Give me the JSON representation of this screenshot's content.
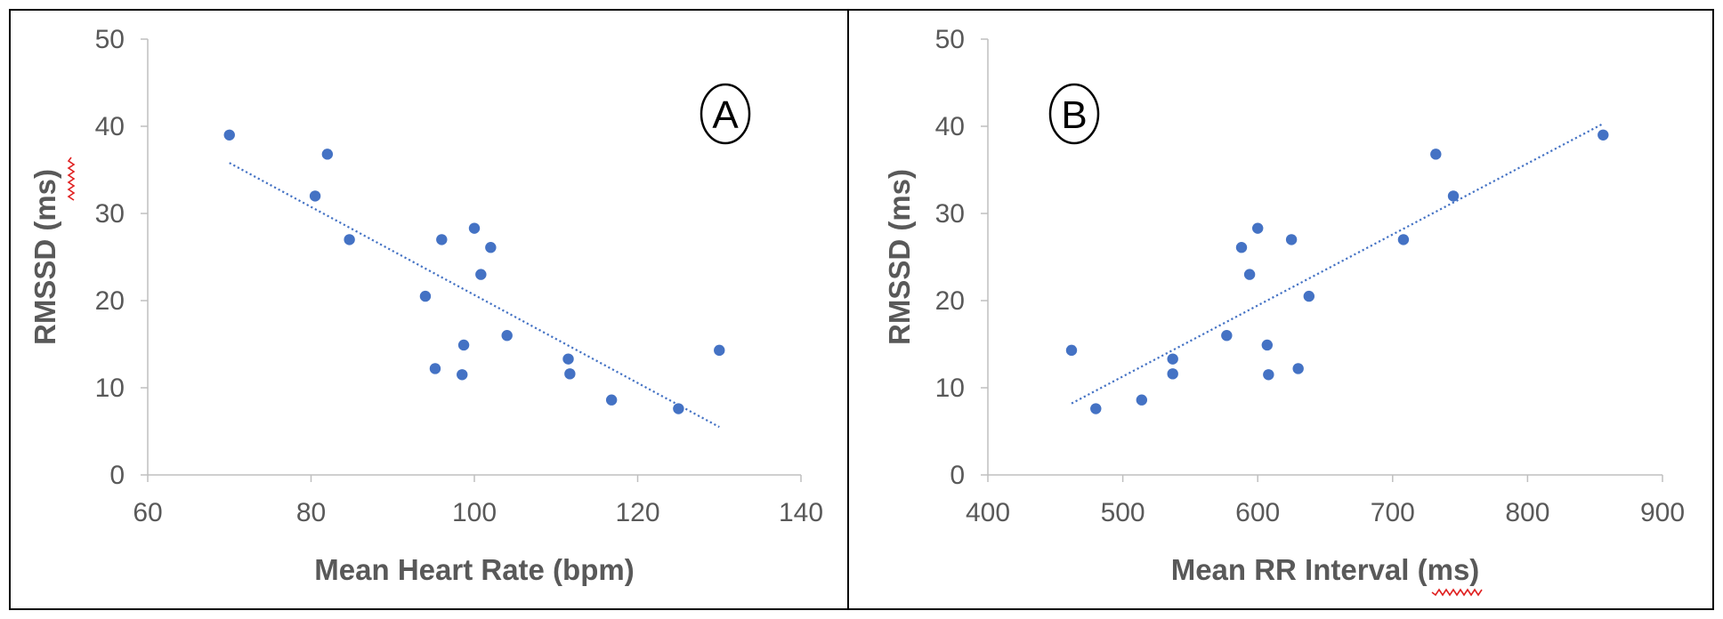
{
  "chart_data": [
    {
      "id": "A",
      "type": "scatter",
      "panel_label": "A",
      "xlabel": "Mean Heart Rate (bpm)",
      "ylabel": "RMSSD (ms)",
      "xlim": [
        60,
        140
      ],
      "ylim": [
        0,
        50
      ],
      "xticks": [
        60,
        80,
        100,
        120,
        140
      ],
      "yticks": [
        0,
        10,
        20,
        30,
        40,
        50
      ],
      "grid": false,
      "trendline": {
        "style": "dotted linear",
        "x": [
          70,
          130
        ],
        "y": [
          35.8,
          5.5
        ]
      },
      "marker_color": "#4472C4",
      "points": [
        {
          "x": 70,
          "y": 39
        },
        {
          "x": 80.5,
          "y": 32
        },
        {
          "x": 82,
          "y": 36.8
        },
        {
          "x": 84.7,
          "y": 27
        },
        {
          "x": 94,
          "y": 20.5
        },
        {
          "x": 95.2,
          "y": 12.2
        },
        {
          "x": 96,
          "y": 27
        },
        {
          "x": 98.5,
          "y": 11.5
        },
        {
          "x": 98.7,
          "y": 14.9
        },
        {
          "x": 100,
          "y": 28.3
        },
        {
          "x": 100.8,
          "y": 23
        },
        {
          "x": 102,
          "y": 26.1
        },
        {
          "x": 104,
          "y": 16
        },
        {
          "x": 111.5,
          "y": 13.3
        },
        {
          "x": 111.7,
          "y": 11.6
        },
        {
          "x": 116.8,
          "y": 8.6
        },
        {
          "x": 125,
          "y": 7.6
        },
        {
          "x": 130,
          "y": 14.3
        }
      ]
    },
    {
      "id": "B",
      "type": "scatter",
      "panel_label": "B",
      "xlabel": "Mean RR Interval (ms)",
      "ylabel": "RMSSD (ms)",
      "xlim": [
        400,
        900
      ],
      "ylim": [
        0,
        50
      ],
      "xticks": [
        400,
        500,
        600,
        700,
        800,
        900
      ],
      "yticks": [
        0,
        10,
        20,
        30,
        40,
        50
      ],
      "grid": false,
      "trendline": {
        "style": "dotted linear",
        "x": [
          462,
          856
        ],
        "y": [
          8.2,
          40.3
        ]
      },
      "marker_color": "#4472C4",
      "points": [
        {
          "x": 462,
          "y": 14.3
        },
        {
          "x": 480,
          "y": 7.6
        },
        {
          "x": 514,
          "y": 8.6
        },
        {
          "x": 537,
          "y": 13.3
        },
        {
          "x": 537,
          "y": 11.6
        },
        {
          "x": 577,
          "y": 16
        },
        {
          "x": 588,
          "y": 26.1
        },
        {
          "x": 594,
          "y": 23
        },
        {
          "x": 600,
          "y": 28.3
        },
        {
          "x": 607,
          "y": 14.9
        },
        {
          "x": 608,
          "y": 11.5
        },
        {
          "x": 625,
          "y": 27
        },
        {
          "x": 630,
          "y": 12.2
        },
        {
          "x": 638,
          "y": 20.5
        },
        {
          "x": 708,
          "y": 27
        },
        {
          "x": 732,
          "y": 36.8
        },
        {
          "x": 745,
          "y": 32
        },
        {
          "x": 856,
          "y": 39
        }
      ]
    }
  ]
}
